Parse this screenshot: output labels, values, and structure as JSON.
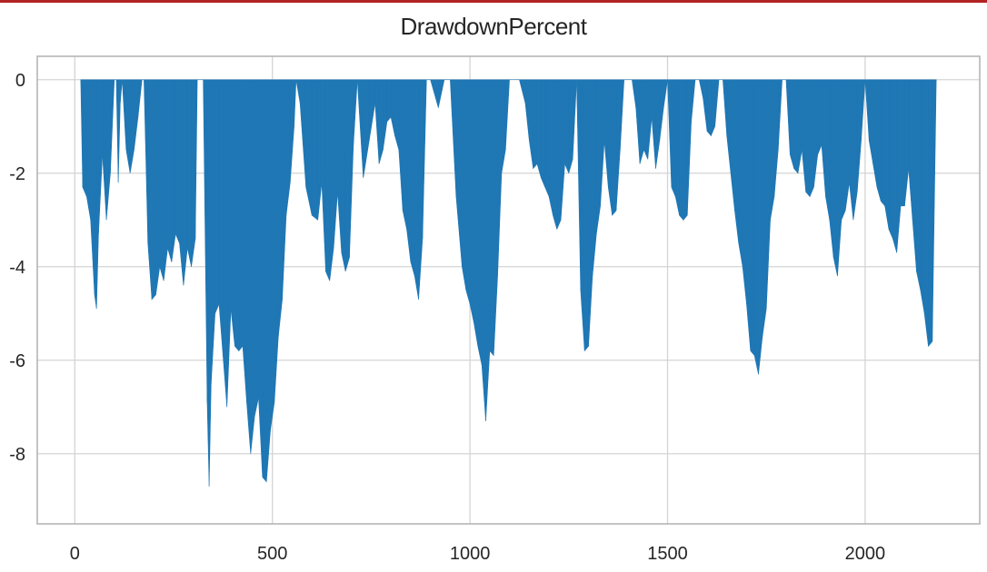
{
  "chart_data": {
    "type": "area",
    "title": "DrawdownPercent",
    "xlabel": "",
    "ylabel": "",
    "xlim": [
      -95,
      2290
    ],
    "ylim": [
      -9.5,
      0.5
    ],
    "x_ticks": [
      0,
      500,
      1000,
      1500,
      2000
    ],
    "y_ticks": [
      0,
      -2,
      -4,
      -6,
      -8
    ],
    "grid": true,
    "legend": "none",
    "colors": {
      "fill": "#1f77b4",
      "grid": "#d4d4d4",
      "axes": "#b0b0b0"
    },
    "series": [
      {
        "x": [
          15,
          20,
          30,
          40,
          50,
          55,
          60,
          70,
          80,
          90,
          100,
          105,
          110,
          115,
          120,
          130,
          140,
          150,
          160,
          170,
          175,
          185,
          195,
          205,
          215,
          225,
          235,
          245,
          255,
          265,
          275,
          285,
          295,
          305,
          310,
          325,
          335,
          340,
          345,
          355,
          365,
          375,
          385,
          395,
          405,
          415,
          425,
          435,
          445,
          455,
          465,
          475,
          485,
          495,
          505,
          515,
          525,
          535,
          545,
          555,
          560,
          570,
          585,
          600,
          615,
          625,
          635,
          645,
          655,
          665,
          675,
          685,
          695,
          705,
          715,
          730,
          745,
          760,
          770,
          780,
          790,
          800,
          810,
          820,
          830,
          840,
          850,
          860,
          870,
          880,
          890,
          900,
          910,
          920,
          935,
          950,
          965,
          980,
          990,
          1000,
          1010,
          1020,
          1030,
          1040,
          1050,
          1060,
          1070,
          1080,
          1090,
          1100,
          1110,
          1125,
          1140,
          1150,
          1160,
          1170,
          1180,
          1190,
          1200,
          1210,
          1220,
          1230,
          1240,
          1250,
          1260,
          1270,
          1280,
          1290,
          1300,
          1310,
          1320,
          1330,
          1340,
          1350,
          1360,
          1370,
          1380,
          1390,
          1400,
          1410,
          1420,
          1430,
          1440,
          1450,
          1460,
          1470,
          1480,
          1490,
          1500,
          1510,
          1520,
          1530,
          1540,
          1550,
          1560,
          1570,
          1580,
          1590,
          1600,
          1610,
          1620,
          1630,
          1640,
          1650,
          1660,
          1670,
          1680,
          1690,
          1700,
          1710,
          1720,
          1730,
          1740,
          1750,
          1760,
          1770,
          1780,
          1790,
          1800,
          1810,
          1820,
          1830,
          1840,
          1850,
          1860,
          1870,
          1880,
          1890,
          1900,
          1910,
          1920,
          1930,
          1940,
          1950,
          1960,
          1970,
          1980,
          1990,
          2000,
          2010,
          2020,
          2030,
          2040,
          2050,
          2060,
          2070,
          2080,
          2090,
          2100,
          2110,
          2120,
          2130,
          2140,
          2150,
          2160,
          2170,
          2180
        ],
        "y": [
          0,
          -2.3,
          -2.5,
          -3.0,
          -4.6,
          -4.9,
          -3.3,
          -1.6,
          -3.0,
          -2.0,
          0,
          0,
          -2.2,
          -0.5,
          0,
          -1.5,
          -2.0,
          -1.5,
          -0.8,
          0,
          0,
          -3.5,
          -4.7,
          -4.6,
          -4.0,
          -4.3,
          -3.6,
          -3.9,
          -3.3,
          -3.5,
          -4.4,
          -3.6,
          -4.0,
          -3.4,
          0,
          0,
          -6.9,
          -8.7,
          -6.5,
          -5.0,
          -4.8,
          -5.9,
          -7.0,
          -4.9,
          -5.7,
          -5.8,
          -5.7,
          -6.9,
          -8.0,
          -7.2,
          -6.8,
          -8.5,
          -8.6,
          -7.5,
          -6.9,
          -5.5,
          -4.7,
          -2.9,
          -2.2,
          -1.0,
          0,
          -0.5,
          -2.3,
          -2.9,
          -3.0,
          -2.2,
          -4.1,
          -4.3,
          -3.6,
          -2.4,
          -3.7,
          -4.1,
          -3.8,
          -1.4,
          0,
          -2.1,
          -1.3,
          -0.5,
          -1.8,
          -1.5,
          -0.9,
          -0.8,
          -1.2,
          -1.5,
          -2.8,
          -3.2,
          -3.9,
          -4.2,
          -4.7,
          -3.4,
          0,
          0,
          -0.3,
          -0.6,
          0,
          0,
          -2.5,
          -4.0,
          -4.5,
          -4.8,
          -5.2,
          -5.7,
          -6.1,
          -7.3,
          -5.8,
          -5.9,
          -4.2,
          -2.0,
          -1.5,
          0,
          0,
          0,
          -0.5,
          -1.3,
          -1.9,
          -1.8,
          -2.1,
          -2.3,
          -2.5,
          -2.9,
          -3.2,
          -3.0,
          -1.8,
          -2.0,
          -1.7,
          0,
          -4.5,
          -5.8,
          -5.7,
          -4.2,
          -3.3,
          -2.7,
          -1.3,
          -2.3,
          -2.9,
          -2.8,
          -1.5,
          0,
          0,
          0,
          -0.6,
          -1.8,
          -1.5,
          -1.7,
          -0.8,
          -1.9,
          -1.3,
          -0.6,
          0,
          -2.3,
          -2.5,
          -2.9,
          -3.0,
          -2.9,
          -0.9,
          0,
          0,
          -0.4,
          -1.1,
          -1.2,
          -1.0,
          0,
          0,
          -1.2,
          -2.0,
          -2.8,
          -3.5,
          -4.0,
          -4.8,
          -5.8,
          -5.9,
          -6.3,
          -5.5,
          -4.9,
          -3.0,
          -2.5,
          -1.5,
          0,
          0,
          -1.6,
          -1.9,
          -2.0,
          -1.5,
          -2.4,
          -2.5,
          -2.3,
          -1.6,
          -1.4,
          -2.5,
          -3.0,
          -3.8,
          -4.2,
          -3.0,
          -2.8,
          -2.2,
          -3.0,
          -2.4,
          -1.3,
          0,
          -1.3,
          -1.8,
          -2.3,
          -2.6,
          -2.7,
          -3.2,
          -3.4,
          -3.7,
          -2.7,
          -2.7,
          -1.9,
          -3.0,
          -4.1,
          -4.5,
          -5.0,
          -5.7,
          -5.6,
          0
        ]
      }
    ]
  }
}
